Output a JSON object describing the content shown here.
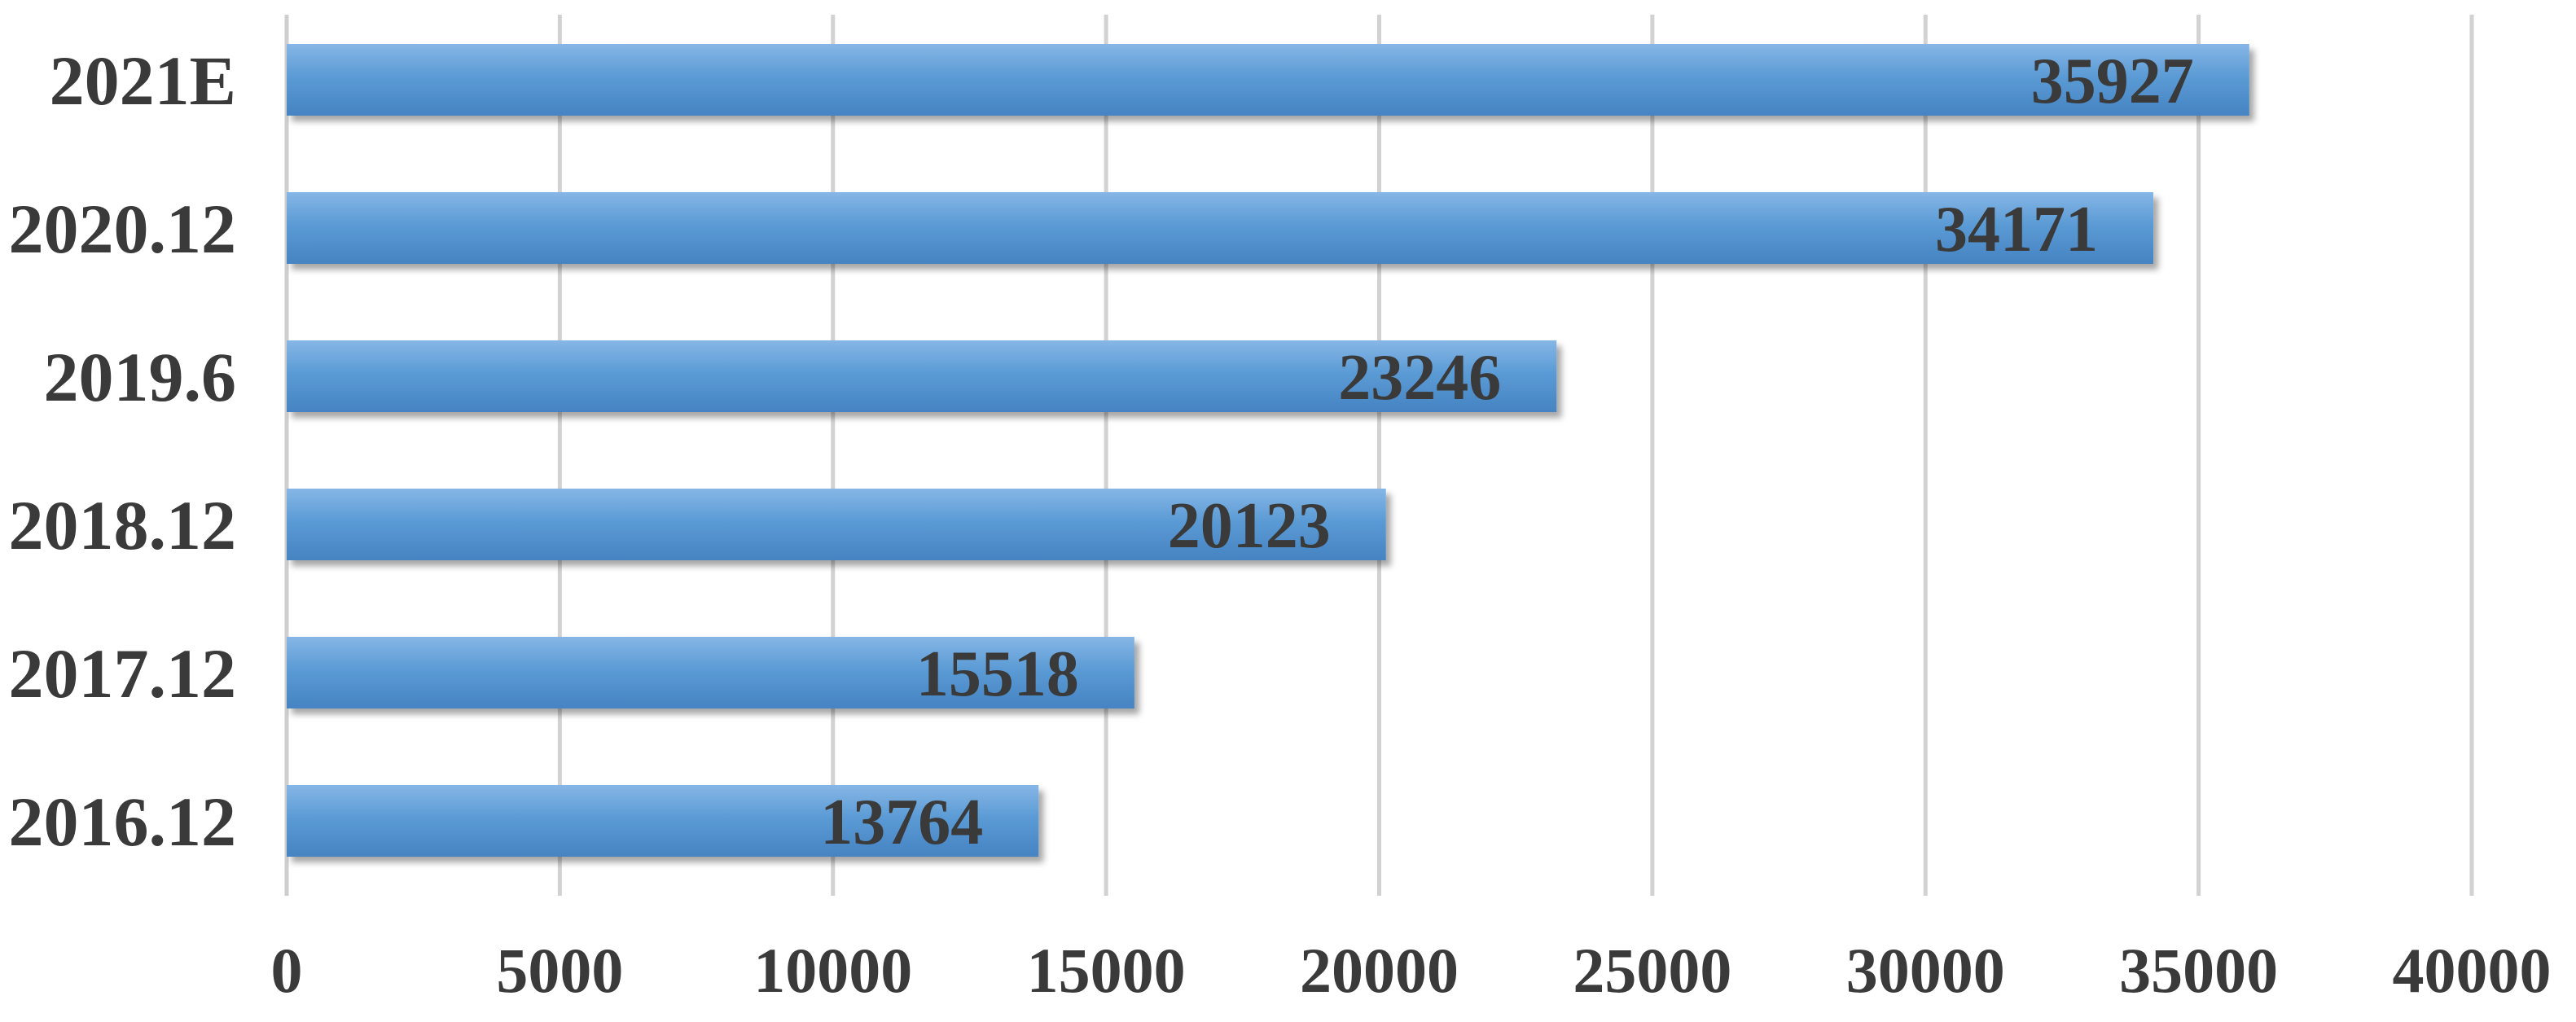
{
  "colors": {
    "bar": "#5b9bd5",
    "bar_dark": "#3f7fbf",
    "bar_light": "#8cbbe8",
    "text": "#3a3a3a",
    "grid": "#d2d2d2"
  },
  "chart_data": {
    "type": "bar",
    "orientation": "horizontal",
    "categories": [
      "2021E",
      "2020.12",
      "2019.6",
      "2018.12",
      "2017.12",
      "2016.12"
    ],
    "values": [
      35927,
      34171,
      23246,
      20123,
      15518,
      13764
    ],
    "data_labels": [
      "35927",
      "34171",
      "23246",
      "20123",
      "15518",
      "13764"
    ],
    "xlim": [
      0,
      40000
    ],
    "xticks": [
      0,
      5000,
      10000,
      15000,
      20000,
      25000,
      30000,
      35000,
      40000
    ],
    "xtick_labels": [
      "0",
      "5000",
      "10000",
      "15000",
      "20000",
      "25000",
      "30000",
      "35000",
      "40000"
    ],
    "title": "",
    "xlabel": "",
    "ylabel": "",
    "grid": true,
    "legend": false
  }
}
